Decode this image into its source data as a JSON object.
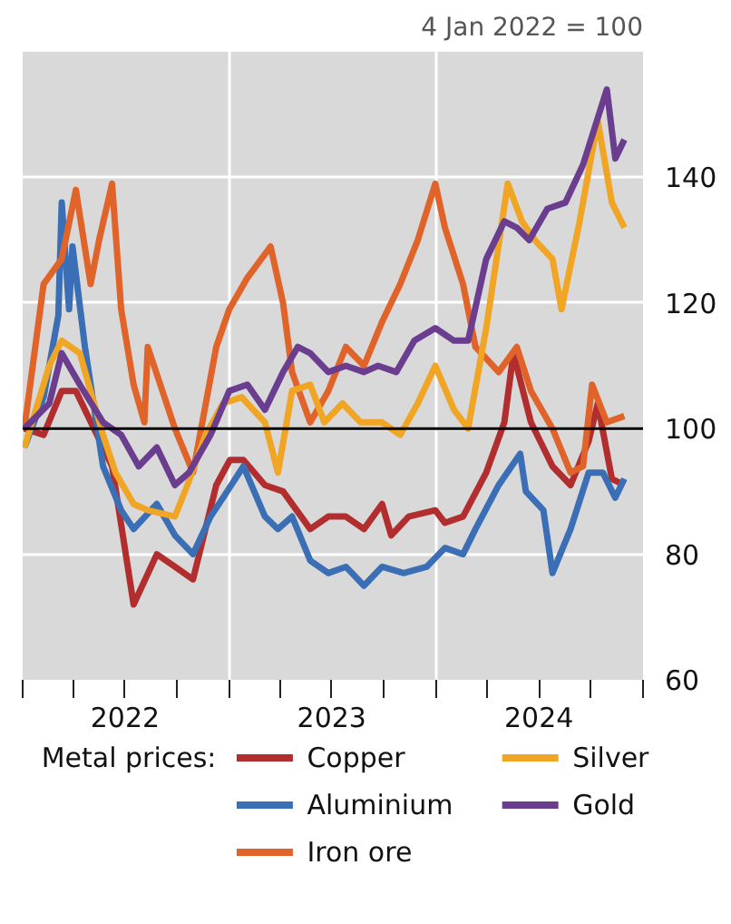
{
  "chart_data": {
    "type": "line",
    "ylabel": "4 Jan 2022 = 100",
    "legend_title": "Metal prices:",
    "legend": "bottom",
    "grid": true,
    "line_style": "solid",
    "xlim": [
      "2022-01-01",
      "2025-01-01"
    ],
    "ylim": [
      60,
      160
    ],
    "yticks": [
      60,
      80,
      100,
      120,
      140
    ],
    "xticks": [
      {
        "value": "2022-01-01",
        "label": null
      },
      {
        "value": "2022-04-01",
        "label": null
      },
      {
        "value": "2022-07-01",
        "label": "2022"
      },
      {
        "value": "2022-10-01",
        "label": null
      },
      {
        "value": "2023-01-01",
        "label": null
      },
      {
        "value": "2023-04-01",
        "label": null
      },
      {
        "value": "2023-07-01",
        "label": "2023"
      },
      {
        "value": "2023-10-01",
        "label": null
      },
      {
        "value": "2024-01-01",
        "label": null
      },
      {
        "value": "2024-04-01",
        "label": null
      },
      {
        "value": "2024-07-01",
        "label": "2024"
      },
      {
        "value": "2024-10-01",
        "label": null
      },
      {
        "value": "2025-01-01",
        "label": null
      }
    ],
    "ref_lines": [
      {
        "axis": "y",
        "value": 100,
        "label": null,
        "color": "#000000"
      }
    ],
    "series": [
      {
        "name": "Copper",
        "color": "#b22d2d",
        "x": [
          "2022-01-04",
          "2022-02-07",
          "2022-03-11",
          "2022-04-05",
          "2022-05-07",
          "2022-06-08",
          "2022-07-16",
          "2022-08-26",
          "2022-09-27",
          "2022-10-29",
          "2022-12-09",
          "2023-01-02",
          "2023-01-26",
          "2023-03-05",
          "2023-04-06",
          "2023-05-24",
          "2023-06-25",
          "2023-07-26",
          "2023-08-27",
          "2023-09-28",
          "2023-10-14",
          "2023-11-14",
          "2023-12-31",
          "2024-01-17",
          "2024-02-18",
          "2024-03-30",
          "2024-05-01",
          "2024-05-17",
          "2024-06-17",
          "2024-07-25",
          "2024-08-26",
          "2024-09-27",
          "2024-10-13",
          "2024-11-07",
          "2024-11-29"
        ],
        "values": [
          100,
          99,
          106,
          106,
          100,
          94,
          72,
          80,
          78,
          76,
          91,
          95,
          95,
          91,
          90,
          84,
          86,
          86,
          84,
          88,
          83,
          86,
          87,
          85,
          86,
          93,
          101,
          112,
          101,
          94,
          91,
          98,
          104,
          92,
          91
        ]
      },
      {
        "name": "Aluminium",
        "color": "#3a6eb5",
        "x": [
          "2022-01-04",
          "2022-02-07",
          "2022-03-05",
          "2022-03-11",
          "2022-03-24",
          "2022-03-30",
          "2022-04-21",
          "2022-05-23",
          "2022-06-24",
          "2022-07-16",
          "2022-08-26",
          "2022-09-27",
          "2022-10-29",
          "2022-11-29",
          "2022-12-21",
          "2023-01-26",
          "2023-03-05",
          "2023-03-28",
          "2023-04-22",
          "2023-05-24",
          "2023-06-25",
          "2023-07-26",
          "2023-08-27",
          "2023-09-28",
          "2023-11-05",
          "2023-12-16",
          "2024-01-17",
          "2024-02-18",
          "2024-03-11",
          "2024-04-21",
          "2024-05-29",
          "2024-06-08",
          "2024-07-09",
          "2024-07-25",
          "2024-08-26",
          "2024-09-27",
          "2024-10-22",
          "2024-11-13",
          "2024-11-29"
        ],
        "values": [
          97,
          105,
          118,
          136,
          119,
          129,
          113,
          94,
          87,
          84,
          88,
          83,
          80,
          86,
          89,
          94,
          86,
          84,
          86,
          79,
          77,
          78,
          75,
          78,
          77,
          78,
          81,
          80,
          84,
          91,
          96,
          90,
          87,
          77,
          84,
          93,
          93,
          89,
          92
        ]
      },
      {
        "name": "Iron ore",
        "color": "#e0632a",
        "x": [
          "2022-01-04",
          "2022-02-07",
          "2022-03-11",
          "2022-04-05",
          "2022-05-01",
          "2022-05-16",
          "2022-06-08",
          "2022-06-24",
          "2022-07-16",
          "2022-08-04",
          "2022-08-10",
          "2022-09-27",
          "2022-10-29",
          "2022-12-09",
          "2023-01-01",
          "2023-02-02",
          "2023-03-15",
          "2023-04-06",
          "2023-04-22",
          "2023-05-24",
          "2023-06-25",
          "2023-07-26",
          "2023-08-27",
          "2023-09-28",
          "2023-10-30",
          "2023-11-30",
          "2023-12-31",
          "2024-01-17",
          "2024-02-18",
          "2024-03-11",
          "2024-04-21",
          "2024-05-23",
          "2024-06-17",
          "2024-07-25",
          "2024-08-26",
          "2024-09-17",
          "2024-10-03",
          "2024-10-29",
          "2024-11-29"
        ],
        "values": [
          100,
          123,
          127,
          138,
          123,
          130,
          139,
          119,
          107,
          101,
          113,
          100,
          93,
          113,
          119,
          124,
          129,
          120,
          109,
          101,
          106,
          113,
          110,
          117,
          123,
          130,
          139,
          132,
          123,
          113,
          109,
          113,
          106,
          100,
          93,
          94,
          107,
          101,
          102
        ]
      },
      {
        "name": "Silver",
        "color": "#f0a524",
        "x": [
          "2022-01-04",
          "2022-02-17",
          "2022-03-11",
          "2022-04-12",
          "2022-05-23",
          "2022-06-14",
          "2022-07-16",
          "2022-08-10",
          "2022-09-27",
          "2022-10-19",
          "2022-11-20",
          "2022-12-21",
          "2023-01-23",
          "2023-03-05",
          "2023-03-28",
          "2023-04-22",
          "2023-05-24",
          "2023-06-18",
          "2023-07-20",
          "2023-08-21",
          "2023-09-28",
          "2023-10-30",
          "2023-11-30",
          "2023-12-31",
          "2024-02-02",
          "2024-02-27",
          "2024-03-30",
          "2024-05-07",
          "2024-06-01",
          "2024-06-24",
          "2024-07-25",
          "2024-08-10",
          "2024-09-11",
          "2024-10-13",
          "2024-11-07",
          "2024-11-29"
        ],
        "values": [
          97,
          110,
          114,
          112,
          99,
          93,
          88,
          87,
          86,
          91,
          99,
          104,
          105,
          101,
          93,
          106,
          107,
          101,
          104,
          101,
          101,
          99,
          104,
          110,
          103,
          100,
          116,
          139,
          133,
          130,
          127,
          119,
          133,
          149,
          136,
          132
        ]
      },
      {
        "name": "Gold",
        "color": "#6a3d8f",
        "x": [
          "2022-01-04",
          "2022-02-17",
          "2022-03-11",
          "2022-04-12",
          "2022-05-23",
          "2022-06-24",
          "2022-07-25",
          "2022-08-26",
          "2022-09-27",
          "2022-10-22",
          "2022-11-29",
          "2023-01-01",
          "2023-02-02",
          "2023-03-05",
          "2023-04-06",
          "2023-05-02",
          "2023-05-24",
          "2023-06-25",
          "2023-07-26",
          "2023-08-27",
          "2023-09-21",
          "2023-10-23",
          "2023-11-24",
          "2023-12-31",
          "2024-02-02",
          "2024-02-27",
          "2024-03-30",
          "2024-05-01",
          "2024-05-23",
          "2024-06-14",
          "2024-07-16",
          "2024-08-17",
          "2024-09-17",
          "2024-10-29",
          "2024-11-13",
          "2024-11-29"
        ],
        "values": [
          100,
          104,
          112,
          107,
          101,
          99,
          94,
          97,
          91,
          93,
          99,
          106,
          107,
          103,
          109,
          113,
          112,
          109,
          110,
          109,
          110,
          109,
          114,
          116,
          114,
          114,
          127,
          133,
          132,
          130,
          135,
          136,
          142,
          154,
          143,
          146
        ]
      }
    ]
  }
}
